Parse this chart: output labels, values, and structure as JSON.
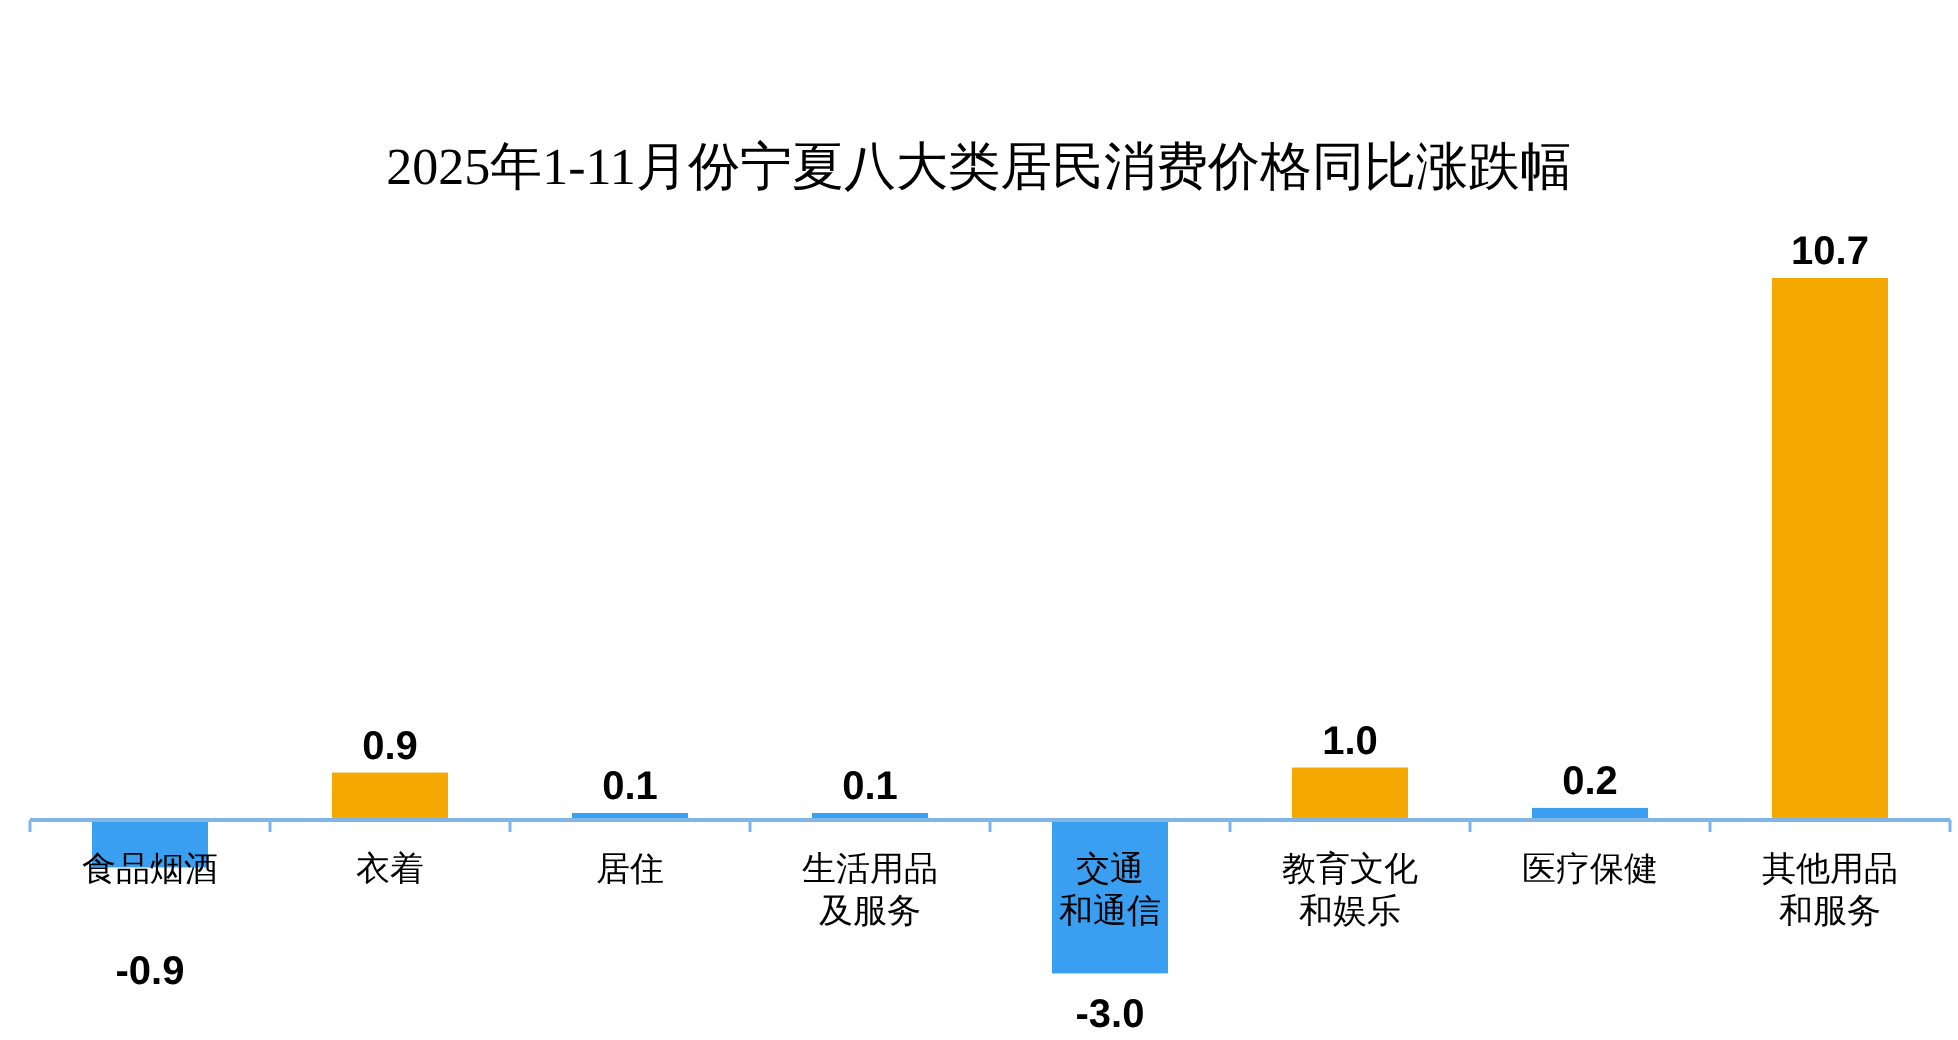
{
  "chart_data": {
    "type": "bar",
    "title": "2025年1-11月份宁夏八大类居民消费价格同比涨跌幅",
    "categories": [
      "食品烟酒",
      "衣着",
      "居住",
      "生活用品及服务",
      "交通和通信",
      "教育文化和娱乐",
      "医疗保健",
      "其他用品和服务"
    ],
    "values": [
      -0.9,
      0.9,
      0.1,
      0.1,
      -3.0,
      1.0,
      0.2,
      10.7
    ],
    "colors": [
      "#3a9ff0",
      "#f5a800",
      "#3a9ff0",
      "#3a9ff0",
      "#3a9ff0",
      "#f5a800",
      "#3a9ff0",
      "#f5a800"
    ],
    "value_labels": [
      "-0.9",
      "0.9",
      "0.1",
      "0.1",
      "-3.0",
      "1.0",
      "0.2",
      "10.7"
    ]
  }
}
